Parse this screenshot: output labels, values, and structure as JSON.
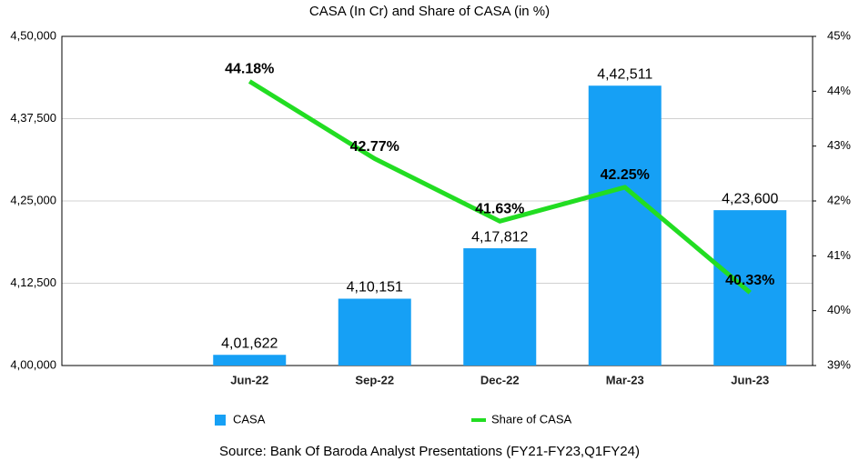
{
  "chart_data": {
    "type": "bar-line",
    "title": "CASA (In Cr) and Share of CASA (in %)",
    "categories": [
      null,
      "Jun-22",
      "Sep-22",
      "Dec-22",
      "Mar-23",
      "Jun-23"
    ],
    "series": [
      {
        "name": "CASA",
        "type": "bar",
        "color": "#16a0f5",
        "axis": "y",
        "values": [
          null,
          401622,
          410151,
          417812,
          442511,
          423600
        ],
        "value_labels": [
          null,
          "4,01,622",
          "4,10,151",
          "4,17,812",
          "4,42,511",
          "4,23,600"
        ]
      },
      {
        "name": "Share of CASA",
        "type": "line",
        "color": "#22dd22",
        "axis": "y2",
        "values": [
          null,
          44.18,
          42.77,
          41.63,
          42.25,
          40.33
        ],
        "value_labels": [
          null,
          "44.18%",
          "42.77%",
          "41.63%",
          "42.25%",
          "40.33%"
        ]
      }
    ],
    "ylim": [
      400000,
      450000
    ],
    "yticks": [
      {
        "value": 400000,
        "label": "4,00,000"
      },
      {
        "value": 412500,
        "label": "4,12,500"
      },
      {
        "value": 425000,
        "label": "4,25,000"
      },
      {
        "value": 437500,
        "label": "4,37,500"
      },
      {
        "value": 450000,
        "label": "4,50,000"
      }
    ],
    "y2lim": [
      39,
      45
    ],
    "y2ticks": [
      {
        "value": 39,
        "label": "39%"
      },
      {
        "value": 40,
        "label": "40%"
      },
      {
        "value": 41,
        "label": "41%"
      },
      {
        "value": 42,
        "label": "42%"
      },
      {
        "value": 43,
        "label": "43%"
      },
      {
        "value": 44,
        "label": "44%"
      },
      {
        "value": 45,
        "label": "45%"
      }
    ],
    "grid": true,
    "legend": "bottom",
    "source": "Source: Bank Of Baroda Analyst Presentations (FY21-FY23,Q1FY24)"
  }
}
